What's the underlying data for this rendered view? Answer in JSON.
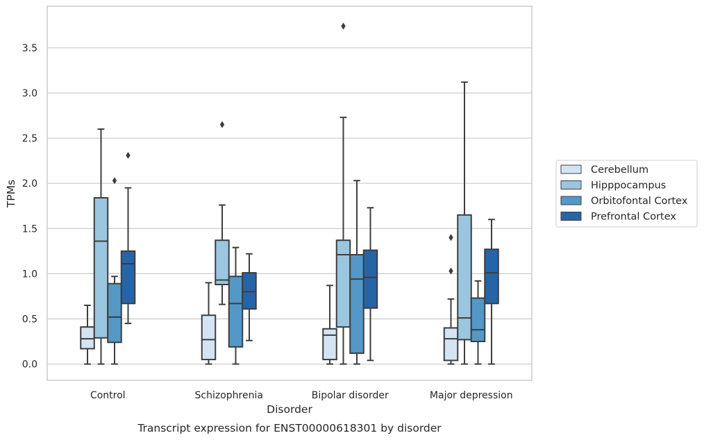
{
  "caption": "Transcript expression for ENST00000618301 by disorder",
  "chart_data": {
    "type": "box",
    "xlabel": "Disorder",
    "ylabel": "TPMs",
    "ylim": [
      -0.18,
      3.96
    ],
    "yticks": [
      0.0,
      0.5,
      1.0,
      1.5,
      2.0,
      2.5,
      3.0,
      3.5
    ],
    "ytick_labels": [
      "0.0",
      "0.5",
      "1.0",
      "1.5",
      "2.0",
      "2.5",
      "3.0",
      "3.5"
    ],
    "grid": "horizontal",
    "legend_position": "right",
    "categories": [
      "Control",
      "Schizophrenia",
      "Bipolar disorder",
      "Major depression"
    ],
    "series": [
      {
        "name": "Cerebellum",
        "color": "#d4e4f3",
        "boxes": [
          {
            "whislo": 0.0,
            "q1": 0.17,
            "med": 0.28,
            "q3": 0.41,
            "whishi": 0.65,
            "fliers": []
          },
          {
            "whislo": 0.0,
            "q1": 0.05,
            "med": 0.27,
            "q3": 0.54,
            "whishi": 0.9,
            "fliers": []
          },
          {
            "whislo": 0.0,
            "q1": 0.05,
            "med": 0.32,
            "q3": 0.39,
            "whishi": 0.87,
            "fliers": []
          },
          {
            "whislo": 0.0,
            "q1": 0.04,
            "med": 0.28,
            "q3": 0.4,
            "whishi": 0.72,
            "fliers": [
              1.03,
              1.4
            ]
          }
        ]
      },
      {
        "name": "Hipppocampus",
        "color": "#9ac6df",
        "boxes": [
          {
            "whislo": 0.0,
            "q1": 0.29,
            "med": 1.36,
            "q3": 1.84,
            "whishi": 2.6,
            "fliers": []
          },
          {
            "whislo": 0.66,
            "q1": 0.88,
            "med": 0.93,
            "q3": 1.37,
            "whishi": 1.76,
            "fliers": [
              2.65
            ]
          },
          {
            "whislo": 0.0,
            "q1": 0.41,
            "med": 1.21,
            "q3": 1.37,
            "whishi": 2.73,
            "fliers": [
              3.74
            ]
          },
          {
            "whislo": 0.0,
            "q1": 0.27,
            "med": 0.51,
            "q3": 1.65,
            "whishi": 3.12,
            "fliers": []
          }
        ]
      },
      {
        "name": "Orbitofontal Cortex",
        "color": "#5498c8",
        "boxes": [
          {
            "whislo": 0.0,
            "q1": 0.24,
            "med": 0.52,
            "q3": 0.89,
            "whishi": 0.97,
            "fliers": [
              2.03
            ]
          },
          {
            "whislo": 0.0,
            "q1": 0.19,
            "med": 0.67,
            "q3": 0.97,
            "whishi": 1.29,
            "fliers": []
          },
          {
            "whislo": 0.0,
            "q1": 0.12,
            "med": 0.94,
            "q3": 1.21,
            "whishi": 2.03,
            "fliers": []
          },
          {
            "whislo": 0.0,
            "q1": 0.25,
            "med": 0.38,
            "q3": 0.73,
            "whishi": 0.92,
            "fliers": []
          }
        ]
      },
      {
        "name": "Prefrontal Cortex",
        "color": "#2565a7",
        "boxes": [
          {
            "whislo": 0.45,
            "q1": 0.67,
            "med": 1.11,
            "q3": 1.25,
            "whishi": 1.95,
            "fliers": [
              2.31
            ]
          },
          {
            "whislo": 0.26,
            "q1": 0.61,
            "med": 0.8,
            "q3": 1.01,
            "whishi": 1.22,
            "fliers": []
          },
          {
            "whislo": 0.04,
            "q1": 0.62,
            "med": 0.96,
            "q3": 1.26,
            "whishi": 1.73,
            "fliers": []
          },
          {
            "whislo": 0.0,
            "q1": 0.67,
            "med": 1.01,
            "q3": 1.27,
            "whishi": 1.6,
            "fliers": []
          }
        ]
      }
    ]
  }
}
